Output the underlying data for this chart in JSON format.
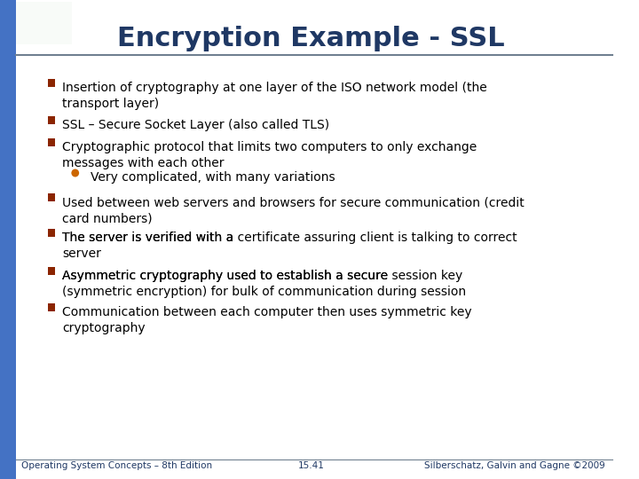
{
  "title": "Encryption Example - SSL",
  "title_color": "#1F3864",
  "title_fontsize": 22,
  "bg_color": "#FFFFFF",
  "left_bar_color": "#4472C4",
  "header_line_color": "#808080",
  "bullet_color": "#8B2500",
  "sub_bullet_color": "#CC6600",
  "text_color": "#000000",
  "footer_text_color": "#1F3864",
  "bullets": [
    {
      "text": "Insertion of cryptography at one layer of the ISO network model (the\ntransport layer)",
      "bold_parts": [],
      "level": 0
    },
    {
      "text": "SSL – Secure Socket Layer (also called TLS)",
      "bold_parts": [],
      "level": 0
    },
    {
      "text": "Cryptographic protocol that limits two computers to only exchange\nmessages with each other",
      "bold_parts": [],
      "level": 0
    },
    {
      "text": "Very complicated, with many variations",
      "bold_parts": [],
      "level": 1
    },
    {
      "text": "Used between web servers and browsers for secure communication (credit\ncard numbers)",
      "bold_parts": [],
      "level": 0
    },
    {
      "text": "The server is verified with a ",
      "bold_parts": [
        "certificate"
      ],
      "suffix": " assuring client is talking to correct\nserver",
      "level": 0
    },
    {
      "text": "Asymmetric cryptography used to establish a secure ",
      "bold_parts": [
        "session key"
      ],
      "suffix": "\n(symmetric encryption) for bulk of communication during session",
      "level": 0
    },
    {
      "text": "Communication between each computer then uses symmetric key\ncryptography",
      "bold_parts": [],
      "level": 0
    }
  ],
  "footer_left": "Operating System Concepts – 8th Edition",
  "footer_center": "15.41",
  "footer_right": "Silberschatz, Galvin and Gagne ©2009",
  "footer_fontsize": 7.5
}
